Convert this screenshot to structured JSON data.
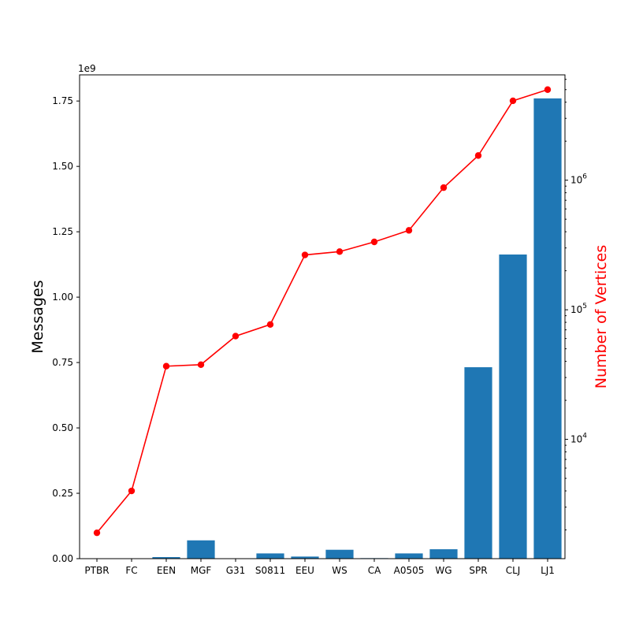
{
  "chart_data": {
    "type": "bar",
    "categories": [
      "PTBR",
      "FC",
      "EEN",
      "MGF",
      "G31",
      "S0811",
      "EEU",
      "WS",
      "CA",
      "A0505",
      "WG",
      "SPR",
      "CLJ",
      "LJ1"
    ],
    "left_axis": {
      "label": "Messages",
      "offset_text": "1e9",
      "ylim": [
        0,
        1.85
      ],
      "ticks": [
        "0.00",
        "0.25",
        "0.50",
        "0.75",
        "1.00",
        "1.25",
        "1.50",
        "1.75"
      ],
      "tick_values": [
        0,
        0.25,
        0.5,
        0.75,
        1.0,
        1.25,
        1.5,
        1.75
      ]
    },
    "right_axis": {
      "label": "Number of Vertices",
      "scale": "log",
      "ylim": [
        1200,
        6500000
      ],
      "ticks": [
        {
          "base": "10",
          "exp": "4",
          "value": 10000
        },
        {
          "base": "10",
          "exp": "5",
          "value": 100000
        },
        {
          "base": "10",
          "exp": "6",
          "value": 1000000
        }
      ]
    },
    "series": [
      {
        "type": "bar",
        "axis": "left",
        "color": "#1f77b4",
        "values": [
          0.0005,
          0.001,
          0.006,
          0.07,
          0.001,
          0.02,
          0.008,
          0.034,
          0.002,
          0.02,
          0.036,
          0.732,
          1.163,
          1.76
        ]
      },
      {
        "type": "line",
        "axis": "right",
        "color": "#ff0000",
        "values": [
          1900,
          4000,
          36700,
          37700,
          62600,
          77000,
          265000,
          281000,
          334000,
          410000,
          876000,
          1550000,
          4100000,
          5000000
        ]
      }
    ]
  }
}
